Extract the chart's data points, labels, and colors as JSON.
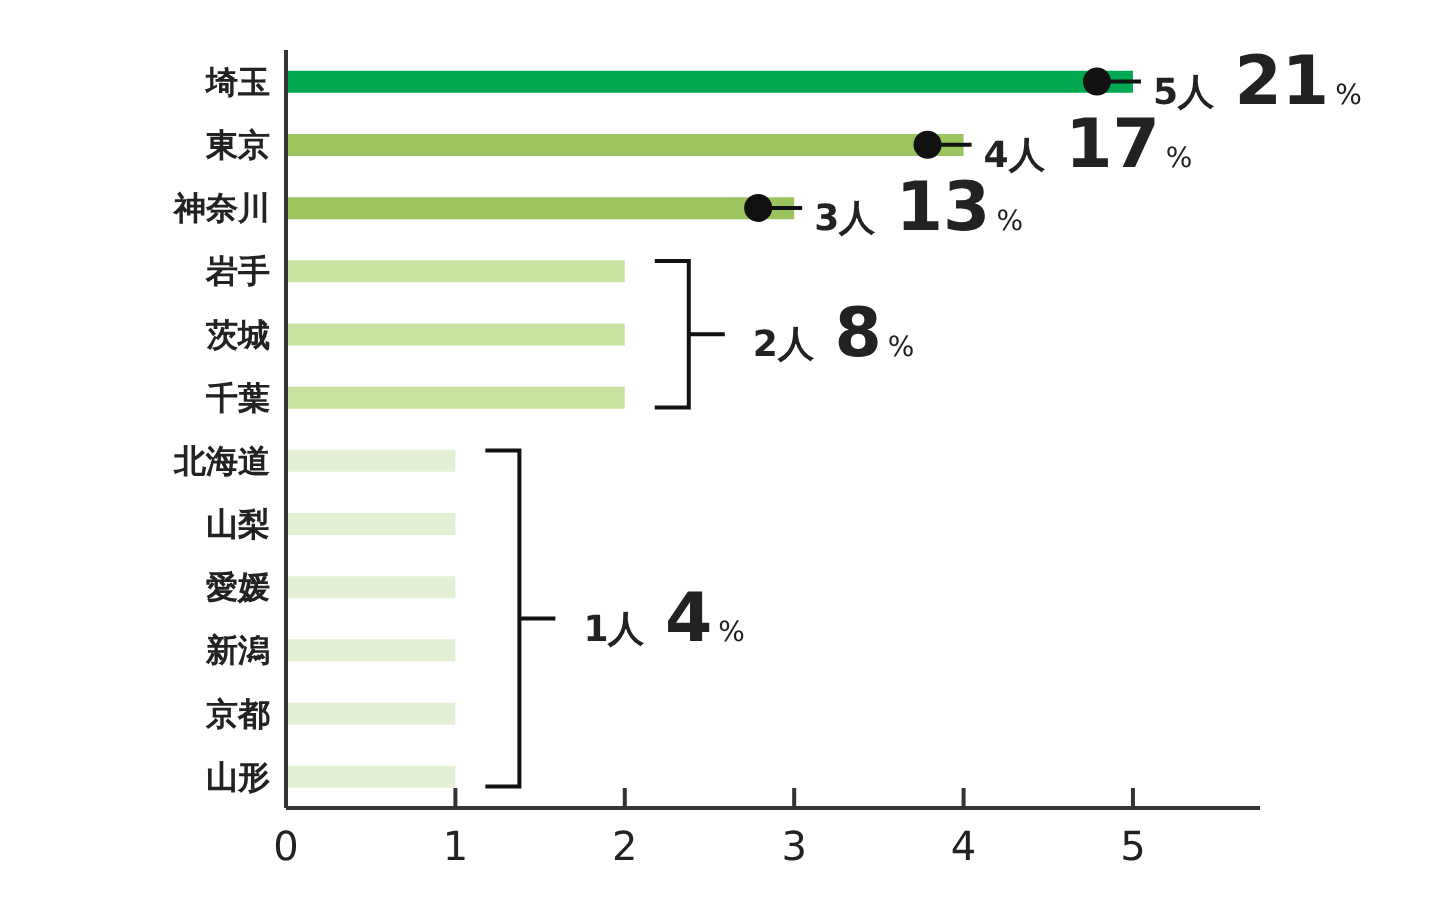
{
  "chart_data": {
    "type": "bar",
    "orientation": "horizontal",
    "categories": [
      "埼玉",
      "東京",
      "神奈川",
      "岩手",
      "茨城",
      "千葉",
      "北海道",
      "山梨",
      "愛媛",
      "新潟",
      "京都",
      "山形"
    ],
    "values": [
      5,
      4,
      3,
      2,
      2,
      2,
      1,
      1,
      1,
      1,
      1,
      1
    ],
    "colors": [
      "#00a84f",
      "#9bc45f",
      "#9bc45f",
      "#c8e29f",
      "#c8e29f",
      "#c8e29f",
      "#e3f0d3",
      "#e3f0d3",
      "#e3f0d3",
      "#e3f0d3",
      "#e3f0d3",
      "#e3f0d3"
    ],
    "xlim": [
      0,
      5.75
    ],
    "xticks": [
      0,
      1,
      2,
      3,
      4,
      5
    ],
    "grid": false,
    "annotations": [
      {
        "text": "5人 21%",
        "x": 5,
        "y": "埼玉"
      },
      {
        "text": "4人 17%",
        "x": 4,
        "y": "東京"
      },
      {
        "text": "3人 13%",
        "x": 3,
        "y": "神奈川"
      },
      {
        "text": "2人 8%",
        "x": 2,
        "y": "茨城"
      },
      {
        "text": "1人 4%",
        "x": 1,
        "y": "愛媛"
      }
    ]
  }
}
